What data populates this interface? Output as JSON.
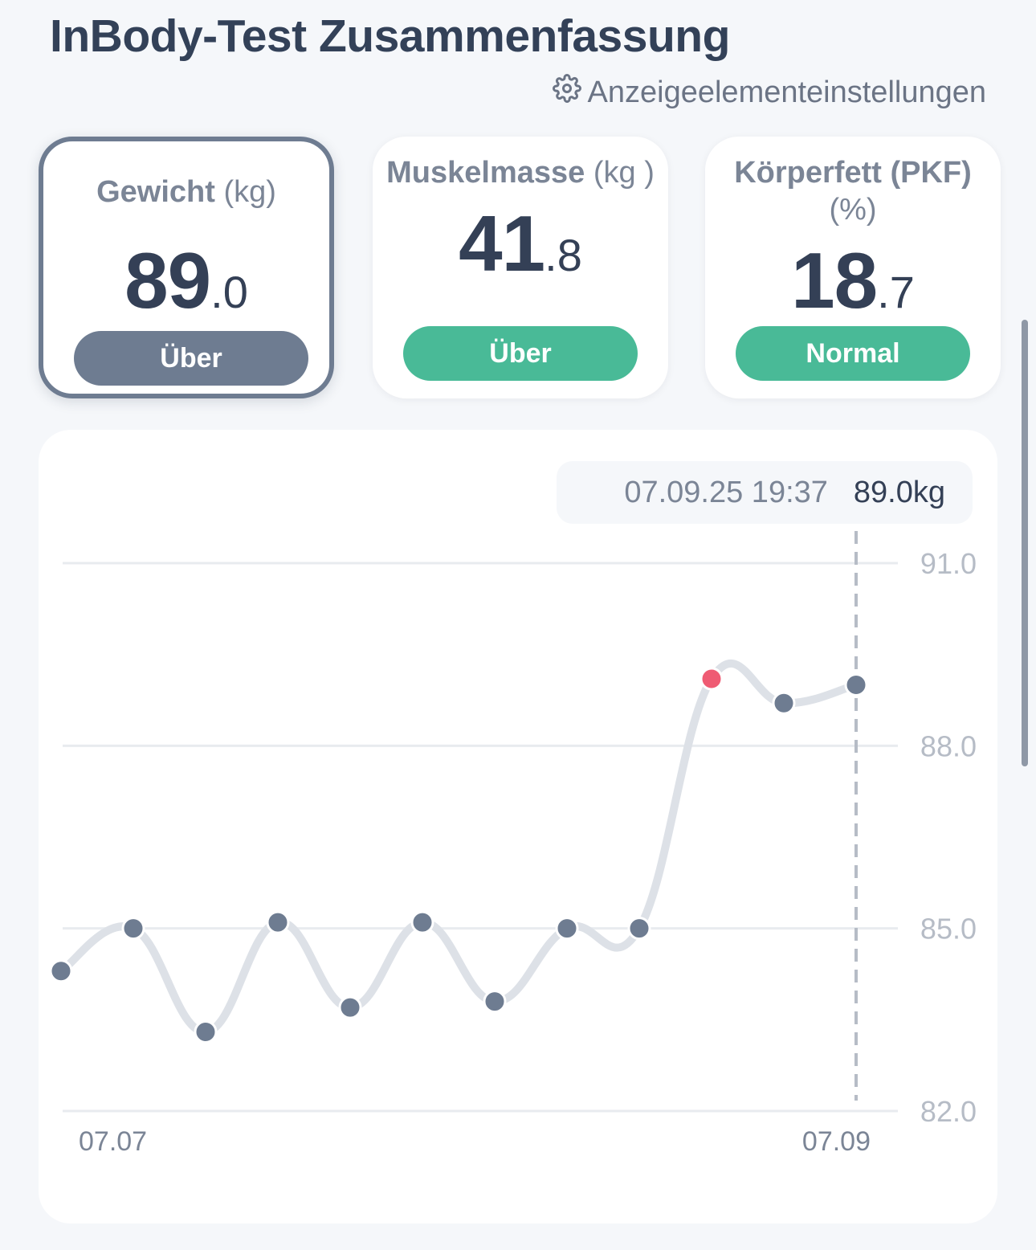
{
  "header": {
    "title": "InBody-Test Zusammenfassung",
    "settings_label": "Anzeigeelementeinstellungen",
    "settings_icon": "gear-icon"
  },
  "cards": [
    {
      "label": "Gewicht",
      "unit": "(kg)",
      "int": "89",
      "dec": ".0",
      "status": "Über",
      "selected": true,
      "color": "#6e7c91"
    },
    {
      "label": "Muskelmasse",
      "unit": "(kg )",
      "int": "41",
      "dec": ".8",
      "status": "Über",
      "selected": false,
      "color": "#49ba97"
    },
    {
      "label": "Körperfett (PKF)",
      "unit": "(%)",
      "int": "18",
      "dec": ".7",
      "status": "Normal",
      "selected": false,
      "color": "#49ba97"
    }
  ],
  "tooltip": {
    "timestamp": "07.09.25 19:37",
    "value": "89.0kg"
  },
  "chart_data": {
    "type": "line",
    "y_ticks": [
      "91.0",
      "88.0",
      "85.0",
      "82.0"
    ],
    "ylim": [
      82.0,
      91.0
    ],
    "x_labels": [
      "07.07",
      "07.09"
    ],
    "series": [
      {
        "values": [
          84.3,
          85.0,
          83.3,
          85.1,
          83.7,
          85.1,
          83.8,
          85.0,
          85.0,
          89.1,
          88.7,
          89.0
        ]
      }
    ],
    "highlighted_point": 9,
    "selected_point": 11,
    "colors": {
      "line": "#dde1e7",
      "point": "#6e7c91",
      "highlight": "#ef5b73",
      "grid": "#e8ebef"
    },
    "grid": true
  }
}
